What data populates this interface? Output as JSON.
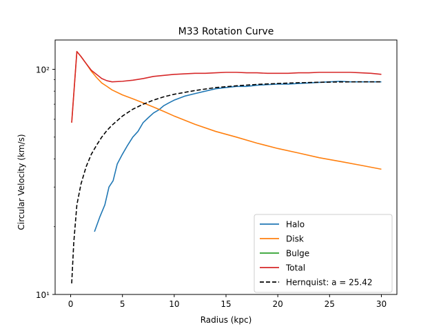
{
  "chart_data": {
    "type": "line",
    "title": "M33 Rotation Curve",
    "xlabel": "Radius (kpc)",
    "ylabel": "Circular Velocity (km/s)",
    "xlim": [
      -1.5,
      31.5
    ],
    "ylim": [
      10,
      135
    ],
    "yscale": "log",
    "grid": false,
    "legend_position": "lower-right",
    "x_ticks": [
      0,
      5,
      10,
      15,
      20,
      25,
      30
    ],
    "x_tick_labels": [
      "0",
      "5",
      "10",
      "15",
      "20",
      "25",
      "30"
    ],
    "y_ticks": [
      10,
      100
    ],
    "y_tick_labels": [
      "10¹",
      "10²"
    ],
    "series": [
      {
        "name": "Halo",
        "color": "#1f77b4",
        "dash": "",
        "x": [
          2.3,
          2.8,
          3.3,
          3.7,
          4.1,
          4.5,
          5.0,
          5.5,
          6.0,
          6.5,
          7.0,
          7.5,
          8.0,
          8.5,
          9.0,
          9.5,
          10.0,
          11.0,
          12.0,
          13.0,
          14.0,
          15.0,
          16.0,
          17.0,
          18.0,
          19.0,
          20.0,
          21.0,
          22.0,
          23.0,
          24.0,
          25.0,
          26.0,
          27.0,
          28.0,
          29.0,
          30.0
        ],
        "y": [
          19,
          22,
          25,
          30,
          32,
          38,
          42,
          46,
          50,
          53,
          58,
          61,
          64,
          66,
          69,
          71,
          73,
          76,
          78,
          80,
          82,
          83,
          84,
          84,
          85,
          85.5,
          86,
          86,
          86.5,
          87,
          87.5,
          88,
          88.5,
          88,
          88,
          88,
          88
        ]
      },
      {
        "name": "Disk",
        "color": "#ff7f0e",
        "dash": "",
        "x": [
          0.1,
          0.6,
          1.0,
          1.5,
          2.0,
          2.5,
          3.0,
          3.5,
          4.0,
          5.0,
          6.0,
          7.0,
          8.0,
          9.0,
          10.0,
          12.0,
          14.0,
          16.0,
          18.0,
          20.0,
          22.0,
          24.0,
          26.0,
          28.0,
          30.0
        ],
        "y": [
          58,
          120,
          114,
          106,
          98,
          92,
          87,
          84,
          81,
          77,
          74,
          71,
          68,
          65,
          62,
          57,
          53,
          50,
          47,
          44.5,
          42.5,
          40.5,
          39,
          37.5,
          36
        ]
      },
      {
        "name": "Bulge",
        "color": "#2ca02c",
        "dash": "",
        "x": [],
        "y": []
      },
      {
        "name": "Total",
        "color": "#d62728",
        "dash": "",
        "x": [
          0.1,
          0.6,
          1.0,
          1.5,
          2.0,
          2.5,
          3.0,
          3.5,
          4.0,
          5.0,
          6.0,
          7.0,
          8.0,
          9.0,
          10.0,
          11.0,
          12.0,
          13.0,
          14.0,
          15.0,
          16.0,
          17.0,
          18.0,
          19.0,
          20.0,
          21.0,
          22.0,
          23.0,
          24.0,
          25.0,
          26.0,
          27.0,
          28.0,
          29.0,
          30.0
        ],
        "y": [
          58,
          120,
          114,
          106,
          99,
          95,
          91,
          89,
          88,
          88.5,
          89.5,
          91,
          93,
          94,
          95,
          95.5,
          96,
          96,
          96.5,
          97,
          97,
          96.5,
          96.5,
          96,
          96,
          96,
          96.5,
          96.5,
          97,
          97,
          97,
          97,
          96.5,
          96,
          95
        ]
      },
      {
        "name": "Hernquist: a = 25.42",
        "color": "#000000",
        "dash": "6,3",
        "x": [
          0.1,
          0.3,
          0.6,
          1.0,
          1.5,
          2.0,
          2.5,
          3.0,
          3.5,
          4.0,
          5.0,
          6.0,
          7.0,
          8.0,
          9.0,
          10.0,
          12.0,
          14.0,
          16.0,
          18.0,
          20.0,
          22.0,
          24.0,
          26.0,
          28.0,
          30.0
        ],
        "y": [
          11.2,
          17,
          25,
          31,
          37,
          42,
          46,
          50,
          53.5,
          56.5,
          62,
          66.5,
          70,
          73,
          75.5,
          77.5,
          80.5,
          83,
          84.5,
          85.7,
          86.5,
          87.2,
          87.6,
          87.9,
          88,
          88
        ]
      }
    ]
  }
}
